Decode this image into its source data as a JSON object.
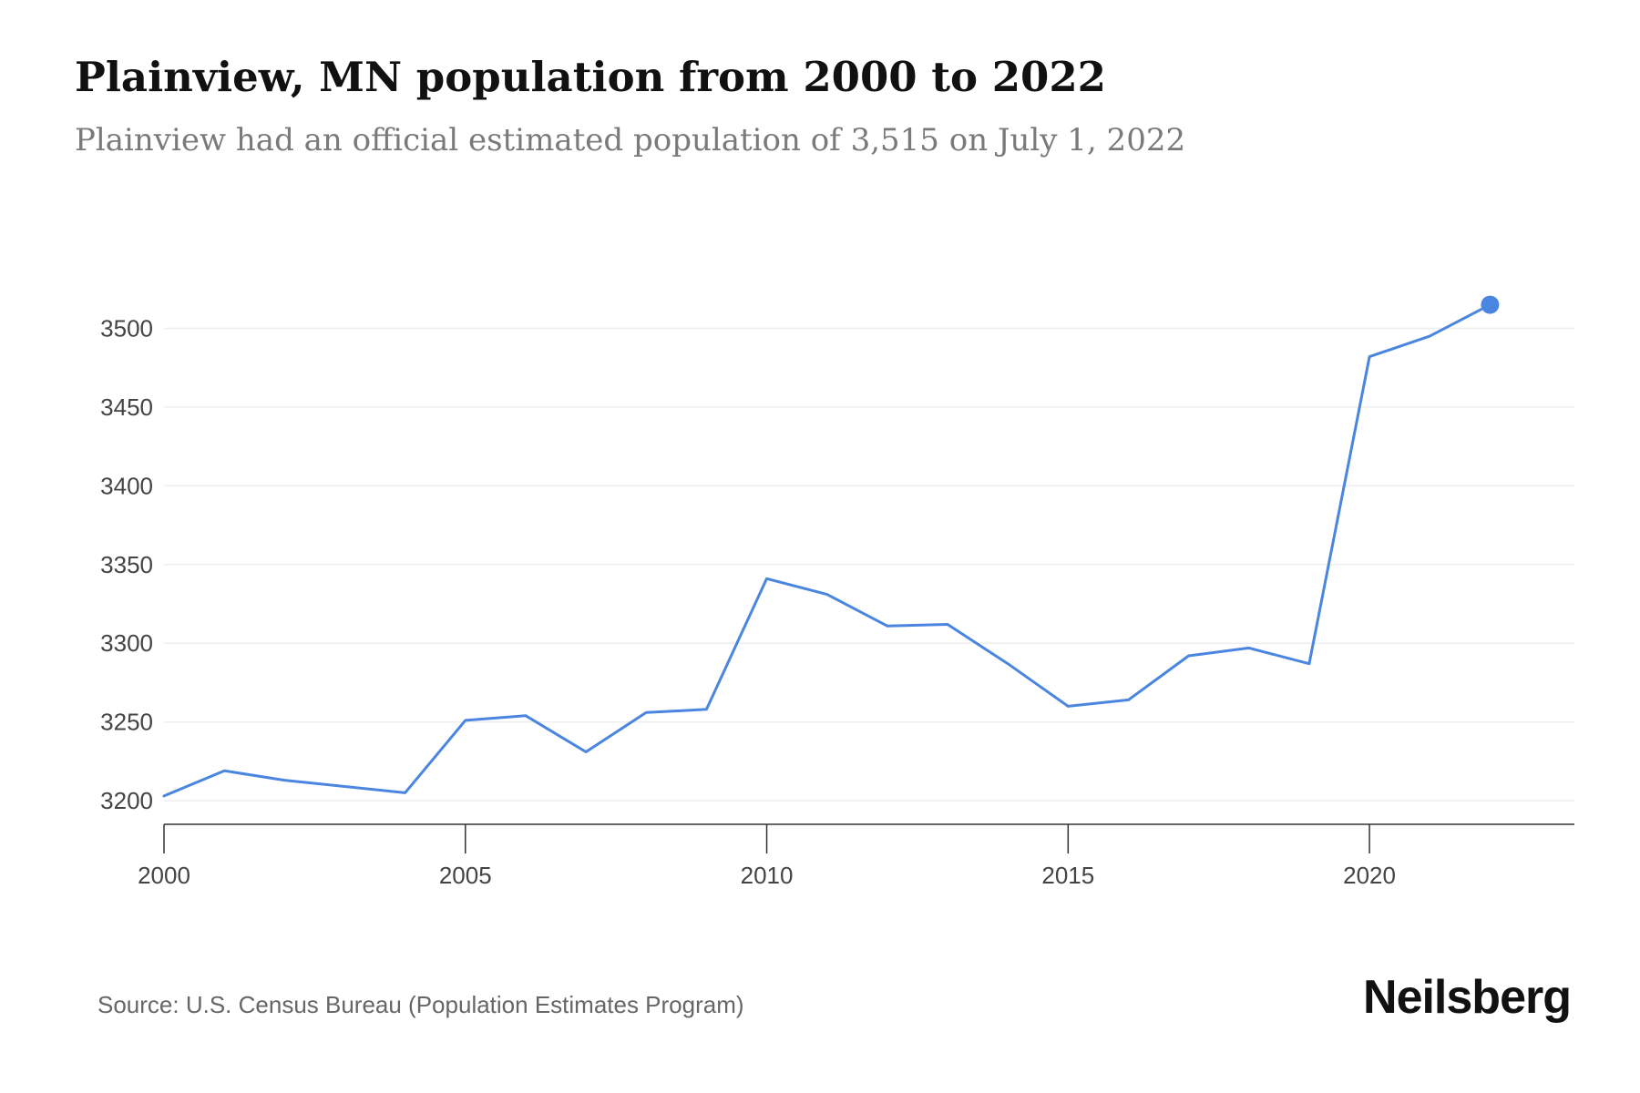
{
  "header": {
    "title": "Plainview, MN population from 2000 to 2022",
    "subtitle": "Plainview had an official estimated population of 3,515 on July 1, 2022"
  },
  "footer": {
    "source": "Source: U.S. Census Bureau (Population Estimates Program)",
    "brand": "Neilsberg"
  },
  "colors": {
    "line": "#4a86e0",
    "marker": "#4a86e0",
    "grid": "#eeeeee",
    "axis": "#333333",
    "tick_label": "#444444"
  },
  "chart_data": {
    "type": "line",
    "title": "Plainview, MN population from 2000 to 2022",
    "subtitle": "Plainview had an official estimated population of 3,515 on July 1, 2022",
    "xlabel": "",
    "ylabel": "",
    "x": [
      2000,
      2001,
      2002,
      2003,
      2004,
      2005,
      2006,
      2007,
      2008,
      2009,
      2010,
      2011,
      2012,
      2013,
      2014,
      2015,
      2016,
      2017,
      2018,
      2019,
      2020,
      2021,
      2022
    ],
    "series": [
      {
        "values": [
          3203,
          3219,
          3213,
          3209,
          3205,
          3251,
          3254,
          3231,
          3256,
          3258,
          3341,
          3331,
          3311,
          3312,
          3287,
          3260,
          3264,
          3292,
          3297,
          3287,
          3482,
          3495,
          3515
        ]
      }
    ],
    "xlim": [
      2000,
      2023.4
    ],
    "ylim": [
      3185,
      3535
    ],
    "x_ticks": [
      2000,
      2005,
      2010,
      2015,
      2020
    ],
    "x_tick_labels": [
      "2000",
      "2005",
      "2010",
      "2015",
      "2020"
    ],
    "y_ticks": [
      3200,
      3250,
      3300,
      3350,
      3400,
      3450,
      3500
    ],
    "y_tick_labels": [
      "3200",
      "3250",
      "3300",
      "3350",
      "3400",
      "3450",
      "3500"
    ],
    "grid": true,
    "legend": "none",
    "highlight_last_point": true
  }
}
